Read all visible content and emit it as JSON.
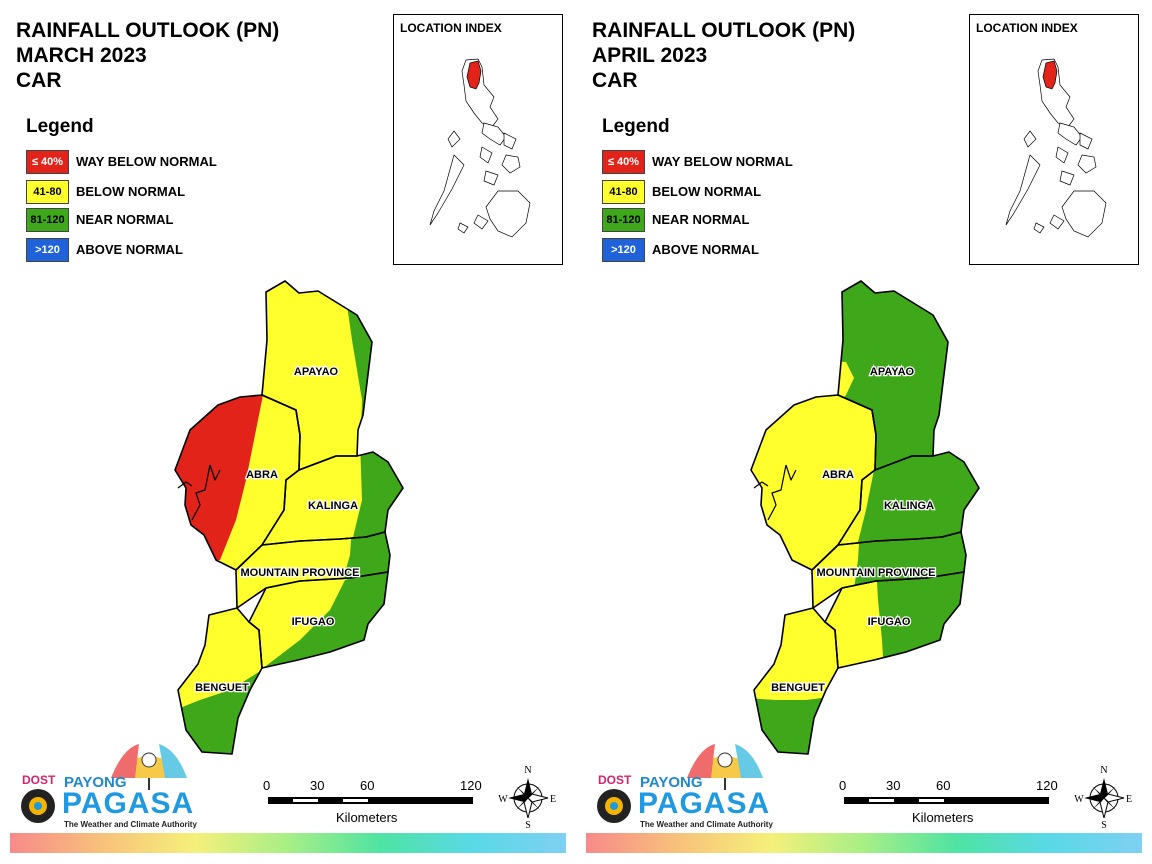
{
  "legend": {
    "title": "Legend",
    "items": [
      {
        "range": "≤ 40%",
        "label": "WAY BELOW NORMAL",
        "color": "#e2231a",
        "text_color": "#ffffff"
      },
      {
        "range": "41-80",
        "label": "BELOW NORMAL",
        "color": "#ffff2e",
        "text_color": "#000000"
      },
      {
        "range": "81-120",
        "label": "NEAR NORMAL",
        "color": "#3ea81a",
        "text_color": "#000000"
      },
      {
        "range": ">120",
        "label": "ABOVE NORMAL",
        "color": "#1f62d9",
        "text_color": "#ffffff"
      }
    ]
  },
  "location_index": {
    "title": "LOCATION INDEX",
    "highlight_color": "#e2231a"
  },
  "provinces": [
    "APAYAO",
    "ABRA",
    "KALINGA",
    "MOUNTAIN PROVINCE",
    "IFUGAO",
    "BENGUET"
  ],
  "panels": [
    {
      "title": [
        "RAINFALL OUTLOOK (PN)",
        "MARCH 2023",
        "CAR"
      ],
      "province_outlook": {
        "APAYAO": "BELOW NORMAL (west) / NEAR NORMAL (east edge)",
        "ABRA": "WAY BELOW NORMAL (west) / BELOW NORMAL (east)",
        "KALINGA": "BELOW NORMAL / NEAR NORMAL (east)",
        "MOUNTAIN PROVINCE": "BELOW NORMAL / NEAR NORMAL (east)",
        "IFUGAO": "BELOW NORMAL / NEAR NORMAL",
        "BENGUET": "BELOW NORMAL / NEAR NORMAL (south)"
      }
    },
    {
      "title": [
        "RAINFALL OUTLOOK (PN)",
        "APRIL 2023",
        "CAR"
      ],
      "province_outlook": {
        "APAYAO": "NEAR NORMAL",
        "ABRA": "BELOW NORMAL",
        "KALINGA": "NEAR NORMAL / BELOW NORMAL (west)",
        "MOUNTAIN PROVINCE": "NEAR NORMAL / BELOW NORMAL (west)",
        "IFUGAO": "BELOW NORMAL / NEAR NORMAL",
        "BENGUET": "BELOW NORMAL / NEAR NORMAL (south)"
      }
    }
  ],
  "scale_bar": {
    "ticks": [
      "0",
      "30",
      "60",
      "120"
    ],
    "unit": "Kilometers"
  },
  "compass": {
    "n": "N",
    "s": "S",
    "e": "E",
    "w": "W"
  },
  "logo": {
    "dost": "DOST",
    "payong": "PAYONG",
    "pagasa": "PAGASA",
    "tagline": "The Weather and Climate Authority"
  }
}
